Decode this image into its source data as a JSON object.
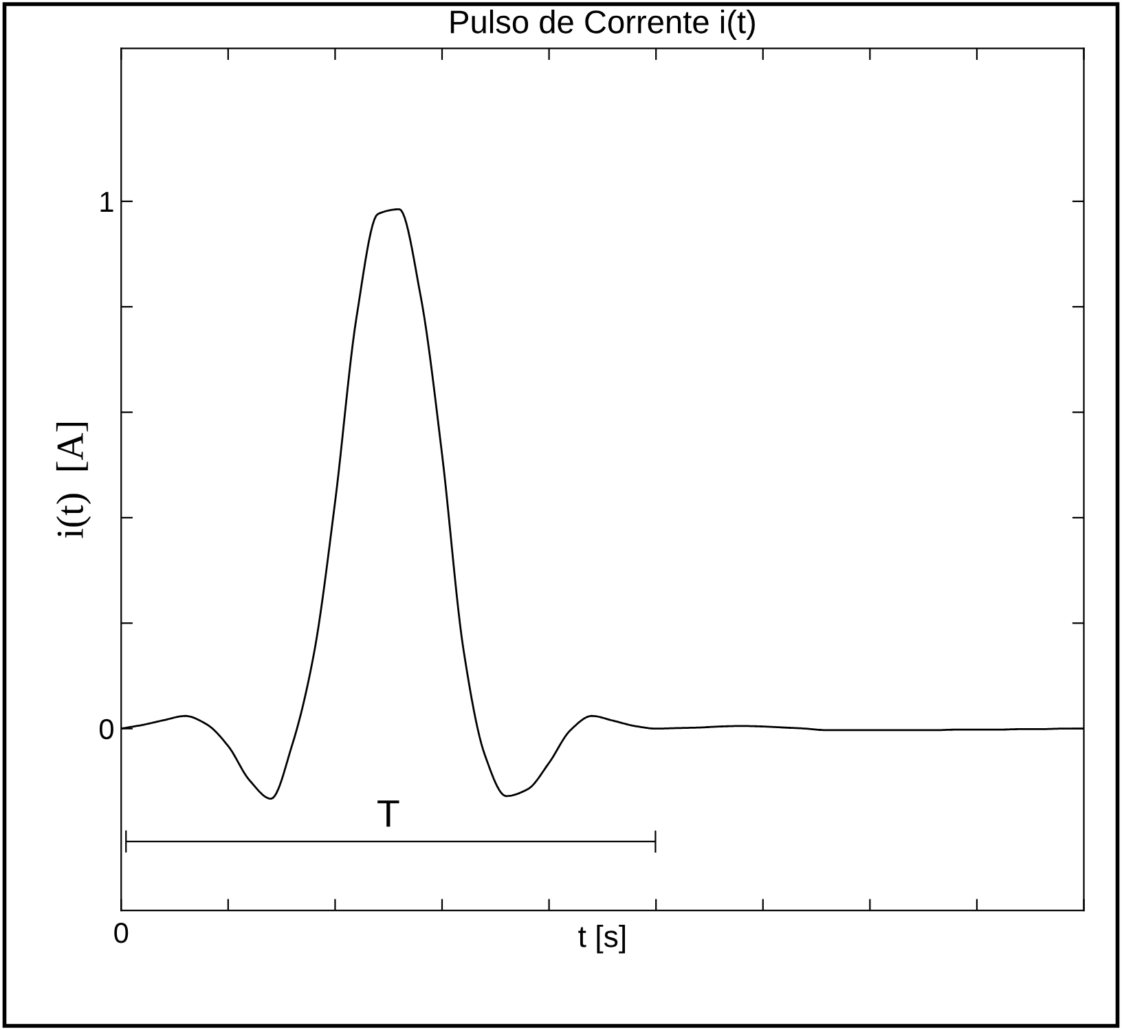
{
  "chart_data": {
    "type": "line",
    "title": "Pulso de Corrente i(t)",
    "xlabel": "t [s]",
    "ylabel": "i(t)  [A]",
    "categories": [
      null,
      null,
      null,
      null,
      null,
      null,
      null,
      null,
      null,
      null,
      null,
      null,
      null,
      null,
      null,
      null,
      null,
      null,
      null,
      null,
      null,
      null,
      null,
      null,
      null,
      null,
      null,
      null,
      null,
      null,
      null,
      null,
      null,
      null,
      null,
      null,
      null,
      null,
      null,
      null,
      null,
      null,
      null,
      null,
      null,
      null
    ],
    "series": [
      {
        "color": "#000000",
        "values": [
          0,
          0.007,
          0.016,
          0.024,
          0.008,
          -0.033,
          -0.098,
          -0.133,
          -0.03,
          0.14,
          0.43,
          0.78,
          0.976,
          0.985,
          0.82,
          0.52,
          0.15,
          -0.05,
          -0.128,
          -0.115,
          -0.065,
          -0.003,
          0.024,
          0.015,
          0.005,
          0,
          0.001,
          0.002,
          0.004,
          0.005,
          0.004,
          0.002,
          0,
          -0.003,
          -0.003,
          -0.003,
          -0.003,
          -0.003,
          -0.003,
          -0.002,
          -0.002,
          -0.002,
          -0.001,
          -0.001,
          0,
          0
        ]
      }
    ],
    "ylim": [
      -0.345,
      1.29
    ],
    "yticks": [
      {
        "value": 0,
        "label": "0"
      },
      {
        "value": 0.2,
        "label": null
      },
      {
        "value": 0.4,
        "label": null
      },
      {
        "value": 0.6,
        "label": null
      },
      {
        "value": 0.8,
        "label": null
      },
      {
        "value": 1,
        "label": "1"
      }
    ],
    "annotations": [
      "T",
      "0"
    ],
    "grid": false,
    "line_style": "solid"
  }
}
